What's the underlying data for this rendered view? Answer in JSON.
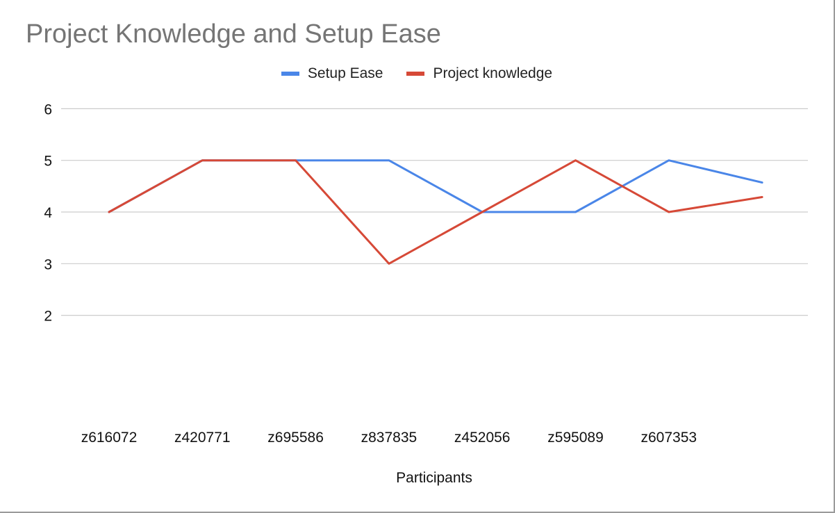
{
  "chart_data": {
    "type": "line",
    "title": "Project Knowledge and Setup Ease",
    "xlabel": "Participants",
    "ylabel": "",
    "categories": [
      "z616072",
      "z420771",
      "z695586",
      "z837835",
      "z452056",
      "z595089",
      "z607353",
      ""
    ],
    "yticks": [
      2,
      3,
      4,
      5,
      6
    ],
    "ylim": [
      2,
      6
    ],
    "grid": true,
    "legend_position": "top-center",
    "series": [
      {
        "name": "Setup Ease",
        "color": "#4a86e8",
        "values": [
          4,
          5,
          5,
          5,
          4,
          4,
          5,
          4.57
        ]
      },
      {
        "name": "Project knowledge",
        "color": "#d64937",
        "values": [
          4,
          5,
          5,
          3,
          4,
          5,
          4,
          4.29
        ]
      }
    ]
  }
}
